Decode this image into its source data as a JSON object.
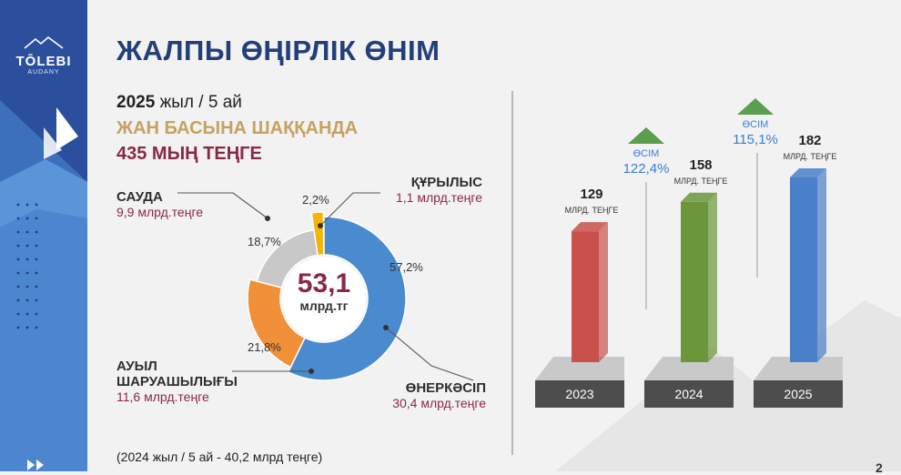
{
  "logo": {
    "name": "TŌLEBI",
    "sub": "AUDANY"
  },
  "title": "ЖАЛПЫ ӨҢІРЛІК ӨНІМ",
  "period": {
    "year": "2025",
    "rest": "жыл / 5 ай"
  },
  "per_capita_label": "ЖАН БАСЫНА ШАҚҚАНДА",
  "per_capita_value": "435 МЫҢ ТЕҢГЕ",
  "center": {
    "value": "53,1",
    "unit": "млрд.тг"
  },
  "footnote": "(2024 жыл / 5 ай - 40,2 млрд теңге)",
  "page_number": "2",
  "colors": {
    "industry": "#4a8bcf",
    "agriculture": "#f0913a",
    "trade": "#c8c8c8",
    "construction": "#f4b400",
    "bar_2023": "#c9514b",
    "bar_2024": "#6b963a",
    "bar_2025": "#4a7fc9",
    "growth_arrow": "#5a9e4e",
    "growth_text": "#3d7fd1"
  },
  "chart_data": [
    {
      "type": "pie",
      "total": "53,1",
      "slices": [
        {
          "name": "ӨНЕРКӘСІП",
          "percent": 57.2,
          "percent_label": "57,2%",
          "value_label": "30,4 млрд.теңге",
          "color": "#4a8bcf"
        },
        {
          "name": "АУЫЛ ШАРУАШЫЛЫҒЫ",
          "name_lines": [
            "АУЫЛ",
            "ШАРУАШЫЛЫҒЫ"
          ],
          "percent": 21.8,
          "percent_label": "21,8%",
          "value_label": "11,6 млрд.теңге",
          "color": "#f0913a"
        },
        {
          "name": "САУДА",
          "percent": 18.7,
          "percent_label": "18,7%",
          "value_label": "9,9 млрд.теңге",
          "color": "#c8c8c8"
        },
        {
          "name": "ҚҰРЫЛЫС",
          "percent": 2.2,
          "percent_label": "2,2%",
          "value_label": "1,1 млрд.теңге",
          "color": "#f4b400"
        }
      ]
    },
    {
      "type": "bar",
      "categories": [
        "2023",
        "2024",
        "2025"
      ],
      "values": [
        129,
        158,
        182
      ],
      "value_unit": "МЛРД. ТЕҢГЕ",
      "colors": [
        "#c9514b",
        "#6b963a",
        "#4a7fc9"
      ],
      "growth": [
        {
          "between": [
            "2023",
            "2024"
          ],
          "label": "ӨСІМ",
          "value": "122,4%"
        },
        {
          "between": [
            "2024",
            "2025"
          ],
          "label": "ӨСІМ",
          "value": "115,1%"
        }
      ]
    }
  ]
}
